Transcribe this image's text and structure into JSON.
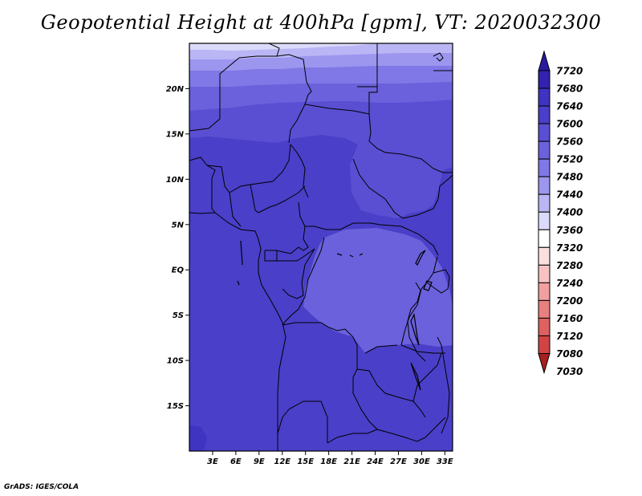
{
  "title": "Geopotential Height at 400hPa [gpm], VT: 2020032300",
  "credit": "GrADS: IGES/COLA",
  "map": {
    "lat_labels": [
      "20N",
      "15N",
      "10N",
      "5N",
      "EQ",
      "5S",
      "10S",
      "15S"
    ],
    "lon_labels": [
      "3E",
      "6E",
      "9E",
      "12E",
      "15E",
      "18E",
      "21E",
      "24E",
      "27E",
      "30E",
      "33E"
    ],
    "lat_values": [
      20,
      15,
      10,
      5,
      0,
      -5,
      -10,
      -15
    ],
    "lon_values": [
      3,
      6,
      9,
      12,
      15,
      18,
      21,
      24,
      27,
      30,
      33
    ],
    "lon_range": [
      0,
      34
    ],
    "lat_range": [
      -20,
      25
    ]
  },
  "colorbar": {
    "labels": [
      "7720",
      "7680",
      "7640",
      "7600",
      "7560",
      "7520",
      "7480",
      "7440",
      "7400",
      "7360",
      "7320",
      "7280",
      "7240",
      "7200",
      "7160",
      "7120",
      "7080",
      "7030"
    ],
    "colors": [
      "#2a1aa0",
      "#3322b0",
      "#3f33c2",
      "#4a3fc8",
      "#5a4fd2",
      "#6b61dc",
      "#8078e6",
      "#9c96ef",
      "#bab6f5",
      "#dcdaf9",
      "#ffffff",
      "#fcdede",
      "#f8c2c2",
      "#f0a0a0",
      "#e88080",
      "#de6060",
      "#d24444",
      "#c23030",
      "#a82020"
    ]
  }
}
